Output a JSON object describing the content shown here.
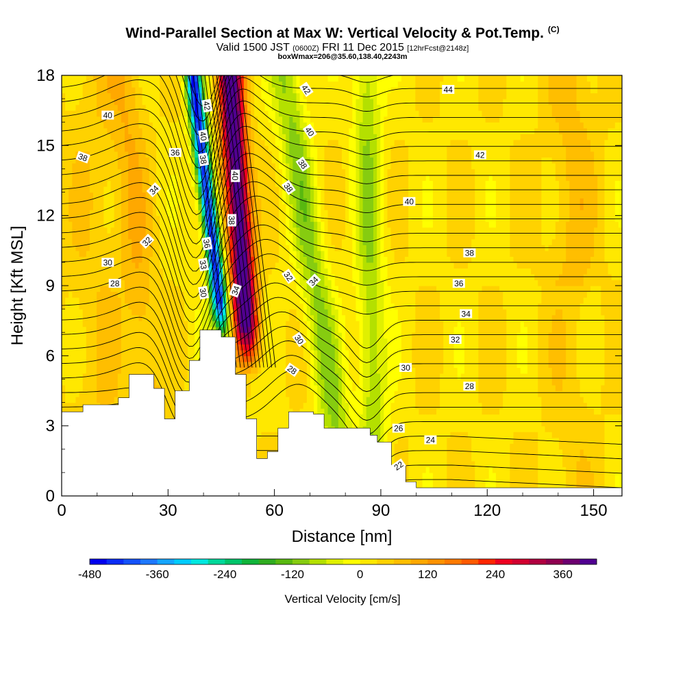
{
  "header": {
    "title": "Wind-Parallel Section at Max W: Vertical Velocity & Pot.Temp.",
    "title_mark": "(C)",
    "valid_prefix": "Valid 1500 JST",
    "valid_utc": "(0600Z)",
    "valid_date": "FRI 11 Dec 2015",
    "forecast": "[12hrFcst@2148z]",
    "box_info": "boxWmax=206@35.60,138.40,2243m"
  },
  "chart_data": {
    "type": "heatmap",
    "xlabel": "Distance [nm]",
    "ylabel": "Height [Kft MSL]",
    "xlim": [
      0,
      158
    ],
    "ylim": [
      0,
      18
    ],
    "xticks": [
      0,
      30,
      60,
      90,
      120,
      150
    ],
    "yticks": [
      0,
      3,
      6,
      9,
      12,
      15,
      18
    ],
    "terrain_kft": [
      [
        0,
        3.6
      ],
      [
        6,
        3.6
      ],
      [
        6,
        3.9
      ],
      [
        13,
        3.9
      ],
      [
        13,
        3.9
      ],
      [
        16,
        3.9
      ],
      [
        16,
        4.2
      ],
      [
        19,
        4.2
      ],
      [
        19,
        5.2
      ],
      [
        26,
        5.2
      ],
      [
        26,
        4.6
      ],
      [
        29,
        4.6
      ],
      [
        29,
        3.3
      ],
      [
        32,
        3.3
      ],
      [
        32,
        4.5
      ],
      [
        36,
        4.5
      ],
      [
        36,
        5.8
      ],
      [
        39,
        5.8
      ],
      [
        39,
        7.1
      ],
      [
        45,
        7.1
      ],
      [
        45,
        6.8
      ],
      [
        49,
        6.8
      ],
      [
        49,
        5.2
      ],
      [
        52,
        5.2
      ],
      [
        52,
        3.3
      ],
      [
        55,
        3.3
      ],
      [
        55,
        1.6
      ],
      [
        58,
        1.6
      ],
      [
        58,
        1.9
      ],
      [
        61,
        1.9
      ],
      [
        61,
        2.9
      ],
      [
        64,
        2.9
      ],
      [
        64,
        3.6
      ],
      [
        71,
        3.6
      ],
      [
        71,
        3.5
      ],
      [
        74,
        3.5
      ],
      [
        74,
        2.9
      ],
      [
        87,
        2.9
      ],
      [
        87,
        2.6
      ],
      [
        89,
        2.6
      ],
      [
        89,
        2.3
      ],
      [
        93,
        2.3
      ],
      [
        93,
        1.3
      ],
      [
        97,
        1.3
      ],
      [
        97,
        0.6
      ],
      [
        100,
        0.6
      ],
      [
        100,
        0.35
      ],
      [
        158,
        0.35
      ]
    ],
    "colorbar": {
      "title": "Vertical Velocity [cm/s]",
      "min": -480,
      "max": 420,
      "step": 30,
      "tick_values": [
        -480,
        -360,
        -240,
        -120,
        0,
        120,
        240,
        360
      ],
      "tick_labels": [
        "-480",
        "-360",
        "-240",
        "-120",
        "0",
        "120",
        "240",
        "360"
      ],
      "colors": [
        "#0000ee",
        "#0a2cf5",
        "#1452fa",
        "#1e78ff",
        "#15a5ff",
        "#00ccff",
        "#00e8e0",
        "#00d89a",
        "#00c46a",
        "#10b43a",
        "#30ac20",
        "#58b810",
        "#86cc10",
        "#b4e000",
        "#e0f000",
        "#ffff00",
        "#ffe800",
        "#ffd200",
        "#ffbe00",
        "#ffa800",
        "#ff9200",
        "#ff7a00",
        "#ff5a00",
        "#ff2600",
        "#ee0020",
        "#d20030",
        "#b00040",
        "#8e0050",
        "#6c0070",
        "#500090"
      ]
    },
    "theta_label_values": {
      "left": [
        "40",
        "38",
        "36",
        "34",
        "32",
        "30",
        "28"
      ],
      "core": [
        "42",
        "40",
        "38",
        "40",
        "38",
        "36",
        "33",
        "30",
        "34"
      ],
      "middle": [
        "42",
        "40",
        "38",
        "38",
        "32",
        "34",
        "30",
        "28"
      ],
      "right": [
        "44",
        "42",
        "40",
        "38",
        "36",
        "34",
        "32",
        "30",
        "28",
        "26",
        "24",
        "22"
      ]
    }
  }
}
